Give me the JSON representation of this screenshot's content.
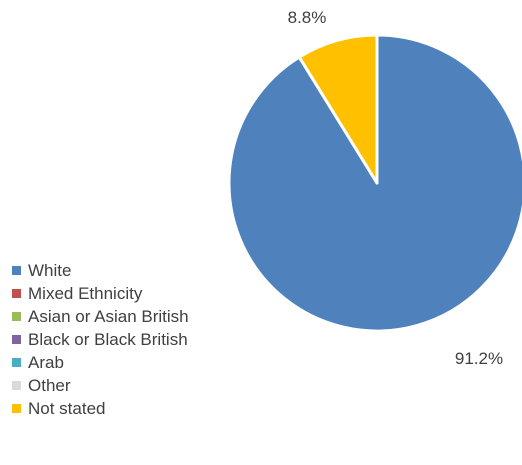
{
  "chart_data": {
    "type": "pie",
    "title": "",
    "categories": [
      "White",
      "Mixed Ethnicity",
      "Asian or Asian British",
      "Black or Black British",
      "Arab",
      "Other",
      "Not stated"
    ],
    "values": [
      91.2,
      0,
      0,
      0,
      0,
      0,
      8.8
    ],
    "value_labels": [
      "91.2%",
      "",
      "",
      "",
      "",
      "",
      "8.8%"
    ],
    "colors": [
      "#4F81BD",
      "#C0504D",
      "#9BBB59",
      "#8064A2",
      "#4BACC6",
      "#D9D9D9",
      "#FFC000"
    ],
    "value_format": "percent",
    "start_angle": "12 o'clock",
    "direction": "clockwise",
    "slice_border": "#ffffff",
    "legend_position": "left"
  }
}
